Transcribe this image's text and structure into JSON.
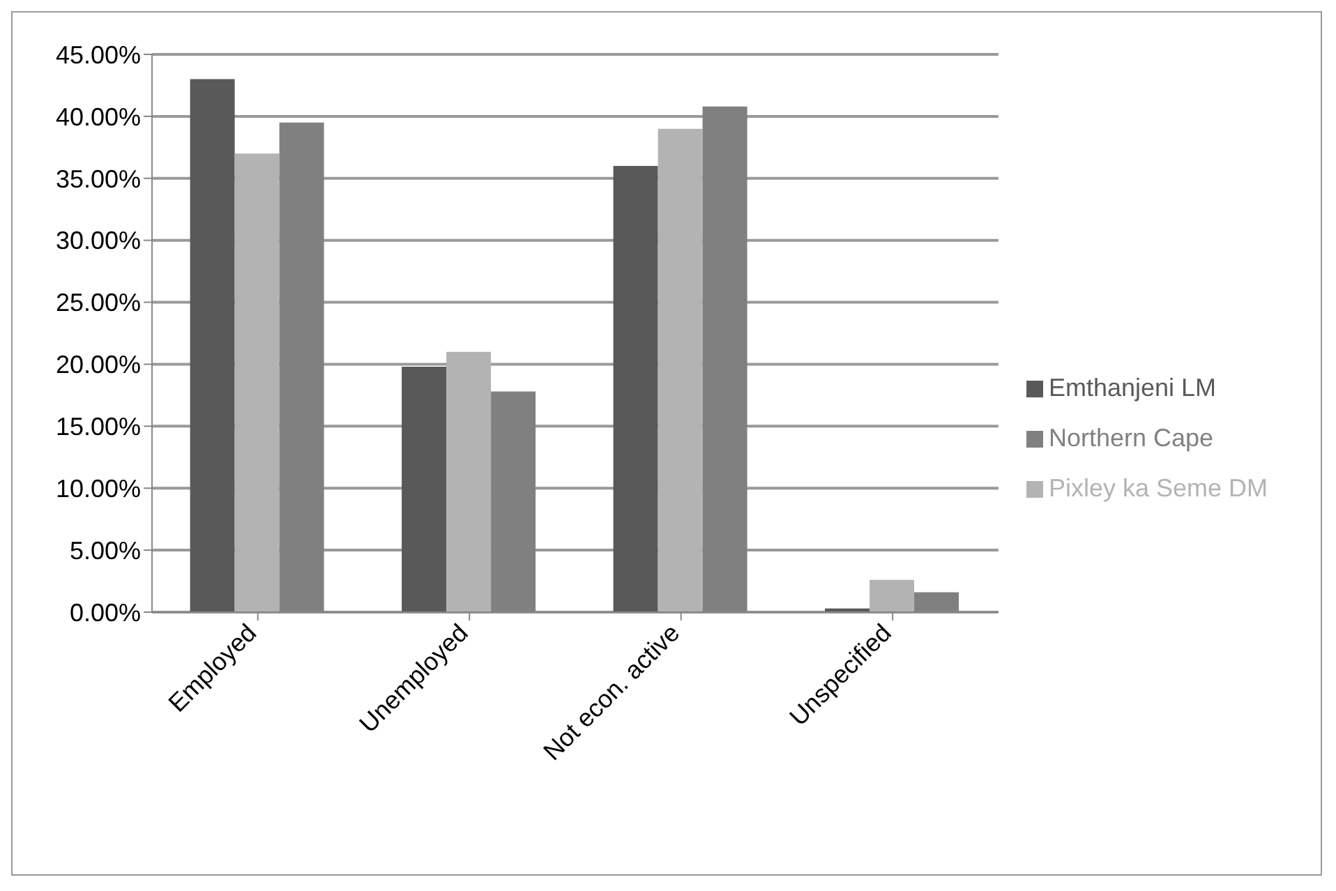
{
  "chart_data": {
    "type": "bar",
    "categories": [
      "Employed",
      "Unemployed",
      "Not econ. active",
      "Unspecified"
    ],
    "series": [
      {
        "name": "Emthanjeni LM",
        "color": "#595959",
        "values": [
          43,
          19.8,
          36,
          0.3
        ]
      },
      {
        "name": "Pixley ka Seme DM",
        "color": "#b3b3b3",
        "values": [
          37,
          21,
          39,
          2.6
        ]
      },
      {
        "name": "Northern Cape",
        "color": "#808080",
        "values": [
          39.5,
          17.8,
          40.8,
          1.6
        ]
      }
    ],
    "ylim": [
      0,
      45
    ],
    "yticks": [
      {
        "value": 0,
        "label": "0.00%"
      },
      {
        "value": 5,
        "label": "5.00%"
      },
      {
        "value": 10,
        "label": "10.00%"
      },
      {
        "value": 15,
        "label": "15.00%"
      },
      {
        "value": 20,
        "label": "20.00%"
      },
      {
        "value": 25,
        "label": "25.00%"
      },
      {
        "value": 30,
        "label": "30.00%"
      },
      {
        "value": 35,
        "label": "35.00%"
      },
      {
        "value": 40,
        "label": "40.00%"
      },
      {
        "value": 45,
        "label": "45.00%"
      }
    ],
    "grid": "y",
    "legend": "right"
  }
}
